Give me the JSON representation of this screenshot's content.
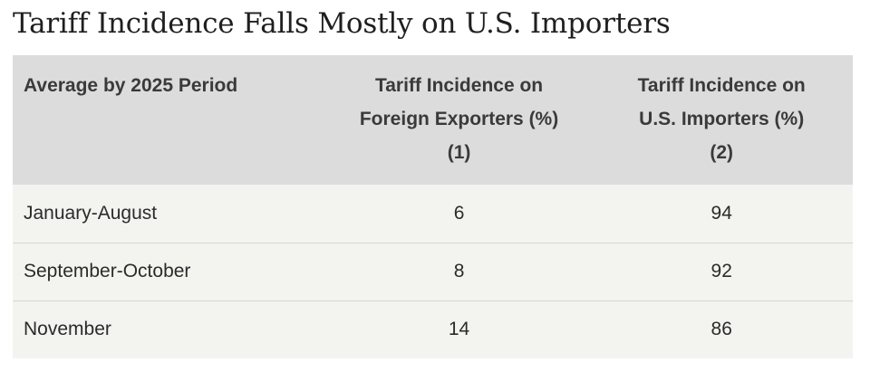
{
  "chart_data": {
    "type": "table",
    "title": "Tariff Incidence Falls Mostly on U.S. Importers",
    "columns": [
      {
        "lines": [
          "Average by 2025 Period"
        ]
      },
      {
        "lines": [
          "Tariff Incidence on",
          "Foreign Exporters (%)",
          "(1)"
        ]
      },
      {
        "lines": [
          "Tariff Incidence on",
          "U.S. Importers (%)",
          "(2)"
        ]
      }
    ],
    "rows": [
      {
        "period": "January-August",
        "foreign_exporters": "6",
        "us_importers": "94"
      },
      {
        "period": "September-October",
        "foreign_exporters": "8",
        "us_importers": "92"
      },
      {
        "period": "November",
        "foreign_exporters": "14",
        "us_importers": "86"
      }
    ]
  }
}
